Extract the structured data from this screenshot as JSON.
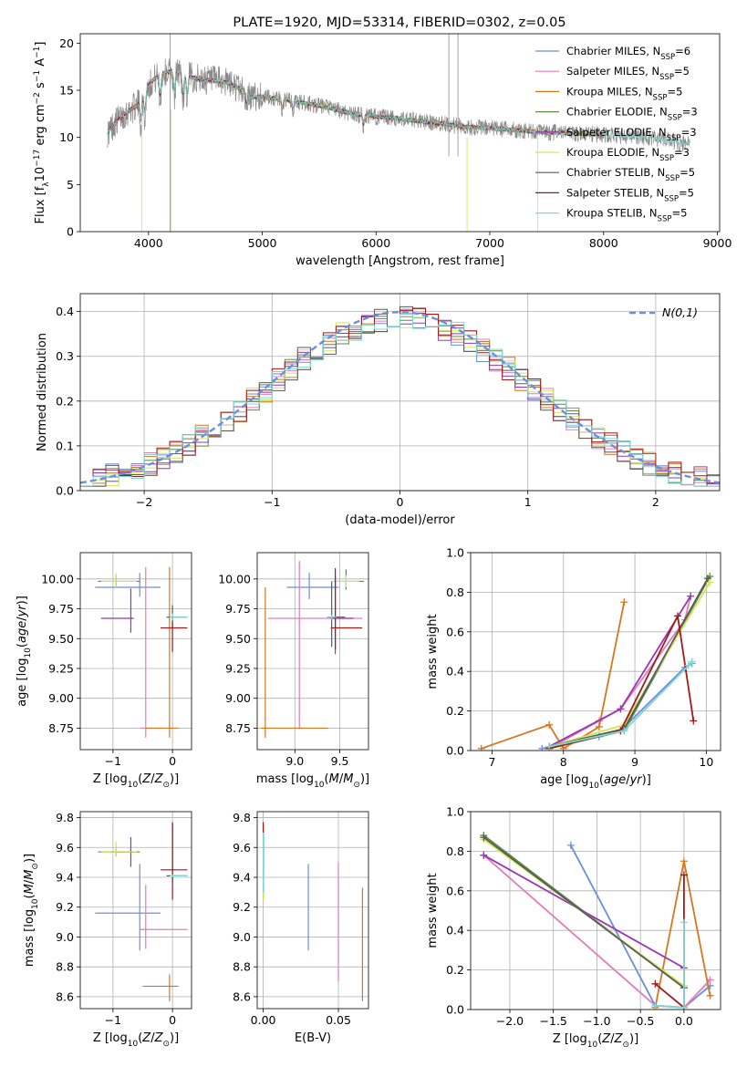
{
  "colors": {
    "chabrier_miles": "#6c8fdc",
    "salpeter_miles": "#e27cbd",
    "kroupa_miles": "#d5771f",
    "chabrier_elodie": "#5a8e45",
    "salpeter_elodie": "#9a34b3",
    "kroupa_elodie": "#d1e553",
    "chabrier_stelib": "#5a5a5a",
    "salpeter_stelib": "#a01a1a",
    "kroupa_stelib": "#7bd9d4",
    "data": "#8a8a8a"
  },
  "chart_data": [
    {
      "id": "spectrum",
      "type": "line",
      "title": "PLATE=1920, MJD=53314, FIBERID=0302, z=0.05",
      "xlabel": "wavelength [Angstrom, rest frame]",
      "ylabel": "Flux [f_λ10^-17 erg cm^-2 s^-1 A^-1]",
      "xlim": [
        3400,
        9020
      ],
      "ylim": [
        0,
        21
      ],
      "xticks": [
        4000,
        5000,
        6000,
        7000,
        8000,
        9000
      ],
      "yticks": [
        0,
        5,
        10,
        15,
        20
      ],
      "legend_position": "top-right",
      "legend": [
        {
          "label": "Chabrier MILES, N",
          "sub": "SSP",
          "tail": "=6",
          "color": "#6c8fdc"
        },
        {
          "label": "Salpeter MILES, N",
          "sub": "SSP",
          "tail": "=5",
          "color": "#e27cbd"
        },
        {
          "label": "Kroupa MILES, N",
          "sub": "SSP",
          "tail": "=5",
          "color": "#d5771f"
        },
        {
          "label": "Chabrier ELODIE, N",
          "sub": "SSP",
          "tail": "=3",
          "color": "#5a8e45"
        },
        {
          "label": "Salpeter ELODIE, N",
          "sub": "SSP",
          "tail": "=3",
          "color": "#9a34b3"
        },
        {
          "label": "Kroupa ELODIE, N",
          "sub": "SSP",
          "tail": "=3",
          "color": "#d1e553"
        },
        {
          "label": "Chabrier STELIB, N",
          "sub": "SSP",
          "tail": "=5",
          "color": "#5a5a5a"
        },
        {
          "label": "Salpeter STELIB, N",
          "sub": "SSP",
          "tail": "=5",
          "color": "#a01a1a"
        },
        {
          "label": "Kroupa STELIB, N",
          "sub": "SSP",
          "tail": "=5",
          "color": "#7bd9d4"
        }
      ],
      "continuum_x": [
        3640,
        3700,
        3800,
        3900,
        3950,
        4000,
        4100,
        4200,
        4300,
        4400,
        4500,
        4600,
        4700,
        4800,
        4900,
        5000,
        5200,
        5400,
        5600,
        5800,
        6000,
        6200,
        6400,
        6600,
        6800,
        7000,
        7200,
        7400,
        7600,
        7800,
        8000,
        8200,
        8400,
        8600,
        8760
      ],
      "continuum_y": [
        10.5,
        11.5,
        12.6,
        13.4,
        14.4,
        15.6,
        16.7,
        17.0,
        16.9,
        16.3,
        16.1,
        16.0,
        15.8,
        15.2,
        14.3,
        14.3,
        14.0,
        13.6,
        13.1,
        12.5,
        12.2,
        12.0,
        11.7,
        11.4,
        11.1,
        11.0,
        10.8,
        10.6,
        10.5,
        10.4,
        10.3,
        10.1,
        10.0,
        9.6,
        9.3
      ]
    },
    {
      "id": "residuals",
      "type": "histogram",
      "xlabel": "(data-model)/error",
      "ylabel": "Normed distribution",
      "xlim": [
        -2.5,
        2.5
      ],
      "ylim": [
        0,
        0.44
      ],
      "xticks": [
        -2,
        -1,
        0,
        1,
        2
      ],
      "yticks": [
        0.0,
        0.1,
        0.2,
        0.3,
        0.4
      ],
      "legend_position": "top-right",
      "reference_curve": "N(0,1)",
      "bin_width": 0.1
    },
    {
      "id": "age_vs_z",
      "type": "errorbar",
      "xlabel": "Z [log10(Z/Z⊙)]",
      "ylabel": "age [log10(age/yr)]",
      "xlim": [
        -1.55,
        0.32
      ],
      "ylim": [
        8.57,
        10.22
      ],
      "xticks": [
        -1,
        0
      ],
      "yticks": [
        8.75,
        9.0,
        9.25,
        9.5,
        9.75,
        10.0
      ],
      "points": [
        {
          "x": -0.55,
          "y": 9.93,
          "xerr": [
            0.75,
            0.35
          ],
          "yerr": [
            0.08,
            0.12
          ],
          "color": "#6c8fdc"
        },
        {
          "x": -0.45,
          "y": 8.75,
          "xerr": [
            0.1,
            0.2
          ],
          "yerr": [
            0.08,
            1.35
          ],
          "color": "#e27cbd"
        },
        {
          "x": -0.05,
          "y": 8.75,
          "xerr": [
            0.4,
            0.15
          ],
          "yerr": [
            0.08,
            1.35
          ],
          "color": "#d5771f"
        },
        {
          "x": -0.95,
          "y": 9.98,
          "xerr": [
            0.3,
            0.4
          ],
          "yerr": [
            0.05,
            0.05
          ],
          "color": "#5a8e45"
        },
        {
          "x": -0.7,
          "y": 9.67,
          "xerr": [
            0.5,
            0.05
          ],
          "yerr": [
            0.12,
            0.25
          ],
          "color": "#9a34b3"
        },
        {
          "x": -0.95,
          "y": 9.98,
          "xerr": [
            0.25,
            0.35
          ],
          "yerr": [
            0.05,
            0.07
          ],
          "color": "#d1e553"
        },
        {
          "x": 0.0,
          "y": 9.68,
          "xerr": [
            0.1,
            0.25
          ],
          "yerr": [
            0.1,
            0.1
          ],
          "color": "#5a5a5a"
        },
        {
          "x": 0.0,
          "y": 9.59,
          "xerr": [
            0.2,
            0.25
          ],
          "yerr": [
            0.2,
            0.1
          ],
          "color": "#a01a1a"
        },
        {
          "x": 0.0,
          "y": 9.68,
          "xerr": [
            0.05,
            0.25
          ],
          "yerr": [
            0.03,
            0.03
          ],
          "color": "#7bd9d4"
        }
      ]
    },
    {
      "id": "age_vs_mass",
      "type": "errorbar",
      "xlabel": "mass [log10(M/M⊙)]",
      "ylabel": "",
      "xlim": [
        8.58,
        9.82
      ],
      "ylim": [
        8.57,
        10.22
      ],
      "xticks": [
        9.0,
        9.5
      ],
      "yticks": [
        8.75,
        9.0,
        9.25,
        9.5,
        9.75,
        10.0
      ],
      "points": [
        {
          "x": 9.16,
          "y": 9.93,
          "xerr": [
            0.25,
            0.33
          ],
          "yerr": [
            0.1,
            0.12
          ],
          "color": "#6c8fdc"
        },
        {
          "x": 9.05,
          "y": 9.67,
          "xerr": [
            0.35,
            0.7
          ],
          "yerr": [
            0.92,
            0.48
          ],
          "color": "#e27cbd"
        },
        {
          "x": 8.67,
          "y": 8.75,
          "xerr": [
            0.05,
            0.7
          ],
          "yerr": [
            0.08,
            1.18
          ],
          "color": "#d5771f"
        },
        {
          "x": 9.57,
          "y": 9.98,
          "xerr": [
            0.1,
            0.2
          ],
          "yerr": [
            0.07,
            0.1
          ],
          "color": "#5a8e45"
        },
        {
          "x": 9.45,
          "y": 9.67,
          "xerr": [
            0.05,
            0.2
          ],
          "yerr": [
            0.3,
            0.35
          ],
          "color": "#9a34b3"
        },
        {
          "x": 9.57,
          "y": 9.98,
          "xerr": [
            0.15,
            0.15
          ],
          "yerr": [
            0.05,
            0.05
          ],
          "color": "#d1e553"
        },
        {
          "x": 9.41,
          "y": 9.68,
          "xerr": [
            0.05,
            0.15
          ],
          "yerr": [
            0.25,
            0.3
          ],
          "color": "#5a5a5a"
        },
        {
          "x": 9.45,
          "y": 9.59,
          "xerr": [
            0.05,
            0.3
          ],
          "yerr": [
            0.18,
            0.5
          ],
          "color": "#a01a1a"
        },
        {
          "x": 9.41,
          "y": 9.68,
          "xerr": [
            0.05,
            0.05
          ],
          "yerr": [
            0.02,
            0.02
          ],
          "color": "#7bd9d4"
        }
      ]
    },
    {
      "id": "mass_weight_vs_age",
      "type": "line",
      "xlabel": "age [log10(age/yr)]",
      "ylabel": "mass weight",
      "xlim": [
        6.7,
        10.2
      ],
      "ylim": [
        0,
        1.0
      ],
      "xticks": [
        7,
        8,
        9,
        10
      ],
      "yticks": [
        0.0,
        0.2,
        0.4,
        0.6,
        0.8,
        1.0
      ],
      "series": [
        {
          "color": "#6c8fdc",
          "x": [
            7.7,
            8.5,
            8.8,
            9.7,
            9.8
          ],
          "y": [
            0.01,
            0.07,
            0.1,
            0.42,
            0.44
          ]
        },
        {
          "color": "#e27cbd",
          "x": [
            7.8,
            8.5,
            8.8,
            9.7,
            9.78
          ],
          "y": [
            0.01,
            0.15,
            0.21,
            0.66,
            0.78
          ]
        },
        {
          "color": "#d5771f",
          "x": [
            6.85,
            7.8,
            8.0,
            8.5,
            8.85
          ],
          "y": [
            0.01,
            0.13,
            0.01,
            0.12,
            0.75
          ]
        },
        {
          "color": "#5a8e45",
          "x": [
            7.8,
            8.85,
            10.05
          ],
          "y": [
            0.01,
            0.1,
            0.88
          ]
        },
        {
          "color": "#9a34b3",
          "x": [
            7.8,
            8.8,
            9.78
          ],
          "y": [
            0.02,
            0.21,
            0.78
          ]
        },
        {
          "color": "#d1e553",
          "x": [
            7.8,
            8.85,
            10.05
          ],
          "y": [
            0.02,
            0.13,
            0.85
          ]
        },
        {
          "color": "#5a5a5a",
          "x": [
            7.8,
            8.85,
            10.02
          ],
          "y": [
            0.02,
            0.11,
            0.87
          ]
        },
        {
          "color": "#a01a1a",
          "x": [
            7.8,
            8.8,
            9.6,
            9.82
          ],
          "y": [
            0.01,
            0.1,
            0.68,
            0.15
          ]
        },
        {
          "color": "#7bd9d4",
          "x": [
            7.8,
            8.85,
            9.75,
            9.8
          ],
          "y": [
            0.02,
            0.1,
            0.43,
            0.45
          ]
        }
      ]
    },
    {
      "id": "mass_vs_z",
      "type": "errorbar",
      "xlabel": "Z [log10(Z/Z⊙)]",
      "ylabel": "mass [log10(M/M⊙)]",
      "xlim": [
        -1.55,
        0.32
      ],
      "ylim": [
        8.52,
        9.84
      ],
      "xticks": [
        -1,
        0
      ],
      "yticks": [
        8.6,
        8.8,
        9.0,
        9.2,
        9.4,
        9.6,
        9.8
      ],
      "points": [
        {
          "x": -0.55,
          "y": 9.16,
          "xerr": [
            0.75,
            0.35
          ],
          "yerr": [
            0.25,
            0.33
          ],
          "color": "#6c8fdc"
        },
        {
          "x": -0.45,
          "y": 9.05,
          "xerr": [
            0.1,
            0.7
          ],
          "yerr": [
            0.13,
            0.3
          ],
          "color": "#e27cbd"
        },
        {
          "x": -0.05,
          "y": 8.67,
          "xerr": [
            0.45,
            0.15
          ],
          "yerr": [
            0.1,
            0.08
          ],
          "color": "#d5771f"
        },
        {
          "x": -0.95,
          "y": 9.57,
          "xerr": [
            0.3,
            0.4
          ],
          "yerr": [
            0.03,
            0.03
          ],
          "color": "#5a8e45"
        },
        {
          "x": -0.7,
          "y": 9.57,
          "xerr": [
            0.35,
            0.05
          ],
          "yerr": [
            0.1,
            0.1
          ],
          "color": "#9a34b3"
        },
        {
          "x": -0.95,
          "y": 9.57,
          "xerr": [
            0.25,
            0.35
          ],
          "yerr": [
            0.03,
            0.07
          ],
          "color": "#d1e553"
        },
        {
          "x": 0.0,
          "y": 9.41,
          "xerr": [
            0.1,
            0.25
          ],
          "yerr": [
            0.04,
            0.35
          ],
          "color": "#5a5a5a"
        },
        {
          "x": 0.0,
          "y": 9.45,
          "xerr": [
            0.2,
            0.25
          ],
          "yerr": [
            0.2,
            0.32
          ],
          "color": "#a01a1a"
        },
        {
          "x": 0.0,
          "y": 9.41,
          "xerr": [
            0.05,
            0.25
          ],
          "yerr": [
            0.01,
            0.01
          ],
          "color": "#7bd9d4"
        }
      ]
    },
    {
      "id": "mass_vs_ebv",
      "type": "errorbar",
      "xlabel": "E(B-V)",
      "ylabel": "",
      "xlim": [
        -0.004,
        0.07
      ],
      "ylim": [
        8.52,
        9.84
      ],
      "xticks": [
        0.0,
        0.05
      ],
      "yticks": [
        8.6,
        8.8,
        9.0,
        9.2,
        9.4,
        9.6,
        9.8
      ],
      "points": [
        {
          "x": 0.03,
          "y": 9.2,
          "xerr": [
            0,
            0
          ],
          "yerr": [
            0.29,
            0.29
          ],
          "color": "#6c8fdc"
        },
        {
          "x": 0.05,
          "y": 9.1,
          "xerr": [
            0,
            0
          ],
          "yerr": [
            0.4,
            0.4
          ],
          "color": "#e27cbd"
        },
        {
          "x": 0.066,
          "y": 8.95,
          "xerr": [
            0,
            0
          ],
          "yerr": [
            0.38,
            0.38
          ],
          "color": "#d5771f"
        },
        {
          "x": 0.0,
          "y": 9.45,
          "xerr": [
            0,
            0
          ],
          "yerr": [
            0.2,
            0.3
          ],
          "color": "#5a8e45"
        },
        {
          "x": 0.0,
          "y": 9.5,
          "xerr": [
            0,
            0
          ],
          "yerr": [
            0.25,
            0.25
          ],
          "color": "#9a34b3"
        },
        {
          "x": 0.0,
          "y": 9.5,
          "xerr": [
            0,
            0
          ],
          "yerr": [
            0.25,
            0.25
          ],
          "color": "#d1e553"
        },
        {
          "x": 0.0,
          "y": 9.5,
          "xerr": [
            0,
            0
          ],
          "yerr": [
            0.2,
            0.25
          ],
          "color": "#5a5a5a"
        },
        {
          "x": 0.0,
          "y": 9.6,
          "xerr": [
            0,
            0
          ],
          "yerr": [
            0.17,
            0.17
          ],
          "color": "#a01a1a"
        },
        {
          "x": 0.0,
          "y": 9.5,
          "xerr": [
            0,
            0
          ],
          "yerr": [
            0.2,
            0.2
          ],
          "color": "#7bd9d4"
        }
      ]
    },
    {
      "id": "mass_weight_vs_z",
      "type": "line",
      "xlabel": "Z [log10(Z/Z⊙)]",
      "ylabel": "mass weight",
      "xlim": [
        -2.45,
        0.42
      ],
      "ylim": [
        0,
        1.0
      ],
      "xticks": [
        -2.0,
        -1.5,
        -1.0,
        -0.5,
        0.0
      ],
      "yticks": [
        0.0,
        0.2,
        0.4,
        0.6,
        0.8,
        1.0
      ],
      "series": [
        {
          "color": "#6c8fdc",
          "x": [
            -1.3,
            -0.33,
            0.0,
            0.3
          ],
          "y": [
            0.83,
            0.02,
            0.01,
            0.12
          ]
        },
        {
          "color": "#e27cbd",
          "x": [
            -2.3,
            -0.33,
            0.0,
            0.3
          ],
          "y": [
            0.78,
            0.02,
            0.01,
            0.15
          ]
        },
        {
          "color": "#d5771f",
          "x": [
            -0.33,
            0.0,
            0.3
          ],
          "y": [
            0.01,
            0.75,
            0.07
          ]
        },
        {
          "color": "#5a8e45",
          "x": [
            -2.3,
            0.0
          ],
          "y": [
            0.88,
            0.11
          ]
        },
        {
          "color": "#9a34b3",
          "x": [
            -2.3,
            0.0
          ],
          "y": [
            0.78,
            0.21
          ]
        },
        {
          "color": "#d1e553",
          "x": [
            -2.3,
            0.0
          ],
          "y": [
            0.86,
            0.12
          ]
        },
        {
          "color": "#5a5a5a",
          "x": [
            -2.3,
            0.0
          ],
          "y": [
            0.87,
            0.11
          ]
        },
        {
          "color": "#a01a1a",
          "x": [
            -0.33,
            0.0,
            0.0
          ],
          "y": [
            0.13,
            0.01,
            0.68
          ]
        },
        {
          "color": "#7bd9d4",
          "x": [
            -0.33,
            0.0,
            0.0
          ],
          "y": [
            0.02,
            0.01,
            0.44
          ]
        }
      ]
    }
  ]
}
